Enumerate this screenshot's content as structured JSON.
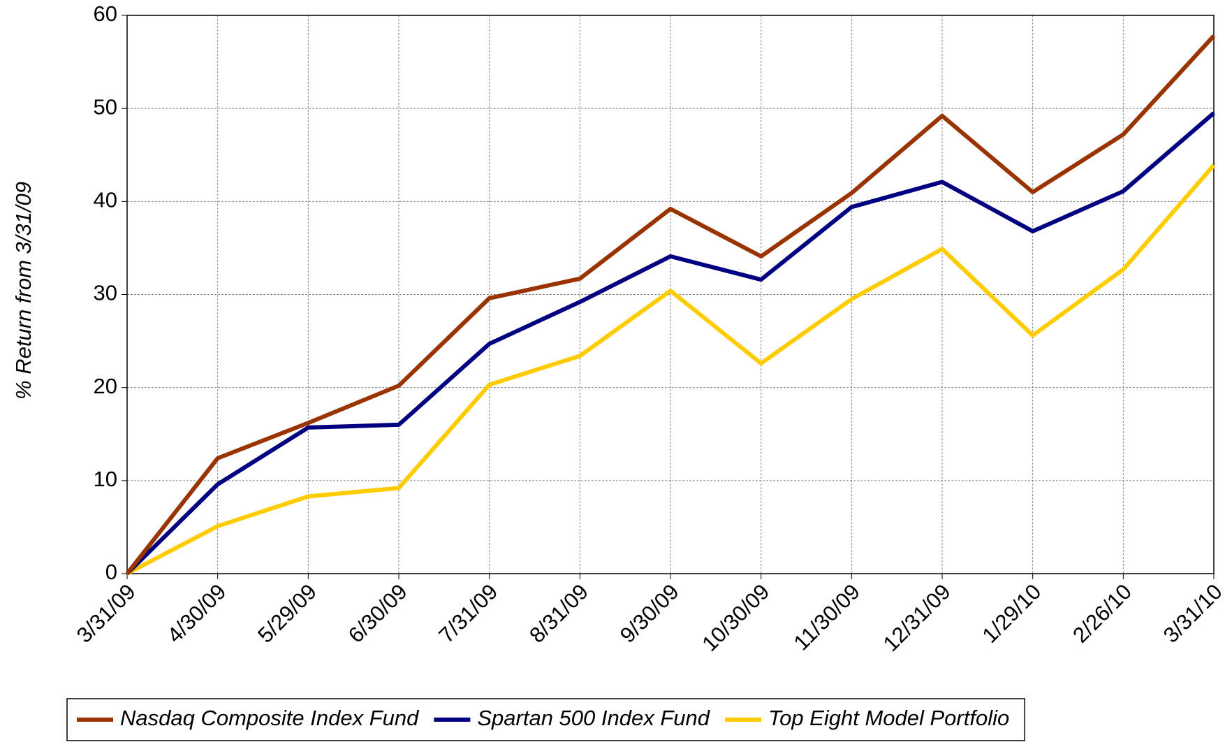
{
  "chart_data": {
    "type": "line",
    "y_label": "% Return from 3/31/09",
    "categories": [
      "3/31/09",
      "4/30/09",
      "5/29/09",
      "6/30/09",
      "7/31/09",
      "8/31/09",
      "9/30/09",
      "10/30/09",
      "11/30/09",
      "12/31/09",
      "1/29/10",
      "2/26/10",
      "3/31/10"
    ],
    "series": [
      {
        "name": "Nasdaq Composite Index Fund",
        "color": "#993300",
        "values": [
          0,
          12.4,
          16.2,
          20.2,
          29.6,
          31.7,
          39.2,
          34.1,
          40.9,
          49.2,
          41.0,
          47.2,
          57.8
        ]
      },
      {
        "name": "Spartan 500 Index Fund",
        "color": "#000080",
        "values": [
          0,
          9.6,
          15.7,
          16.0,
          24.7,
          29.2,
          34.1,
          31.6,
          39.4,
          42.1,
          36.8,
          41.1,
          49.5
        ]
      },
      {
        "name": "Top Eight Model Portfolio",
        "color": "#ffcc00",
        "values": [
          0,
          5.1,
          8.3,
          9.2,
          20.3,
          23.4,
          30.4,
          22.6,
          29.5,
          34.9,
          25.6,
          32.7,
          43.9
        ]
      }
    ],
    "ylim": [
      0,
      60
    ],
    "yticks": [
      0,
      10,
      20,
      30,
      40,
      50,
      60
    ],
    "grid": true,
    "legend": "bottom"
  }
}
